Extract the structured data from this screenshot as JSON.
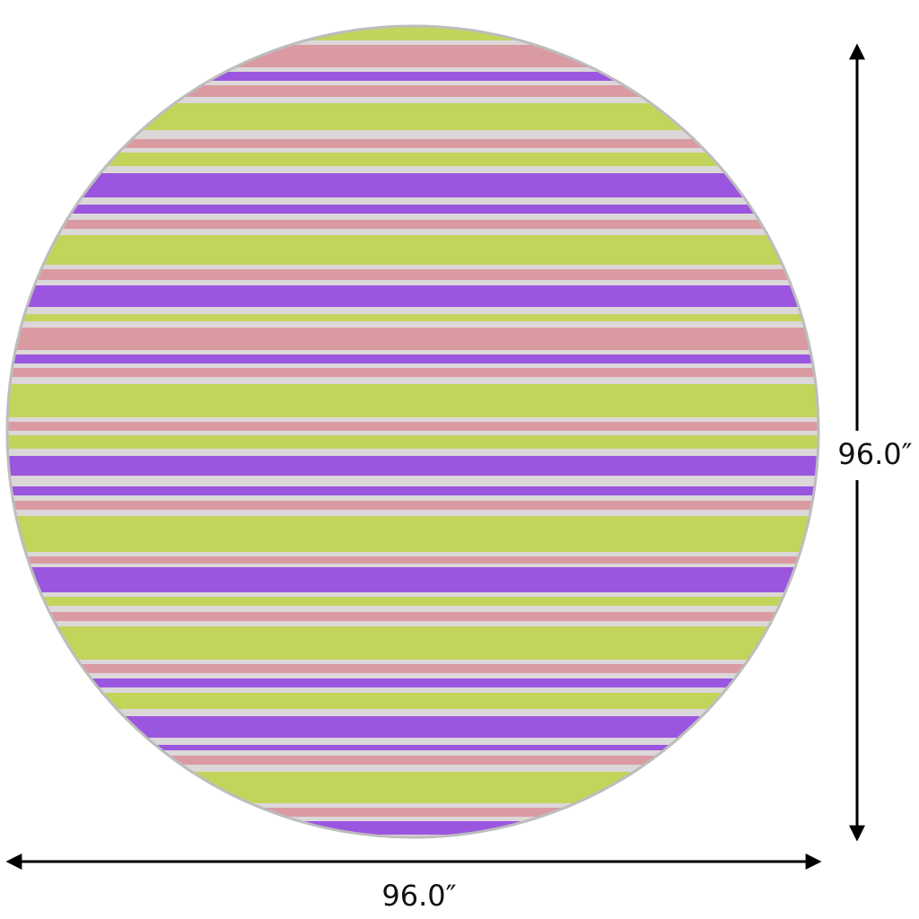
{
  "dimensions": {
    "width": "96.0″",
    "height": "96.0″"
  }
}
